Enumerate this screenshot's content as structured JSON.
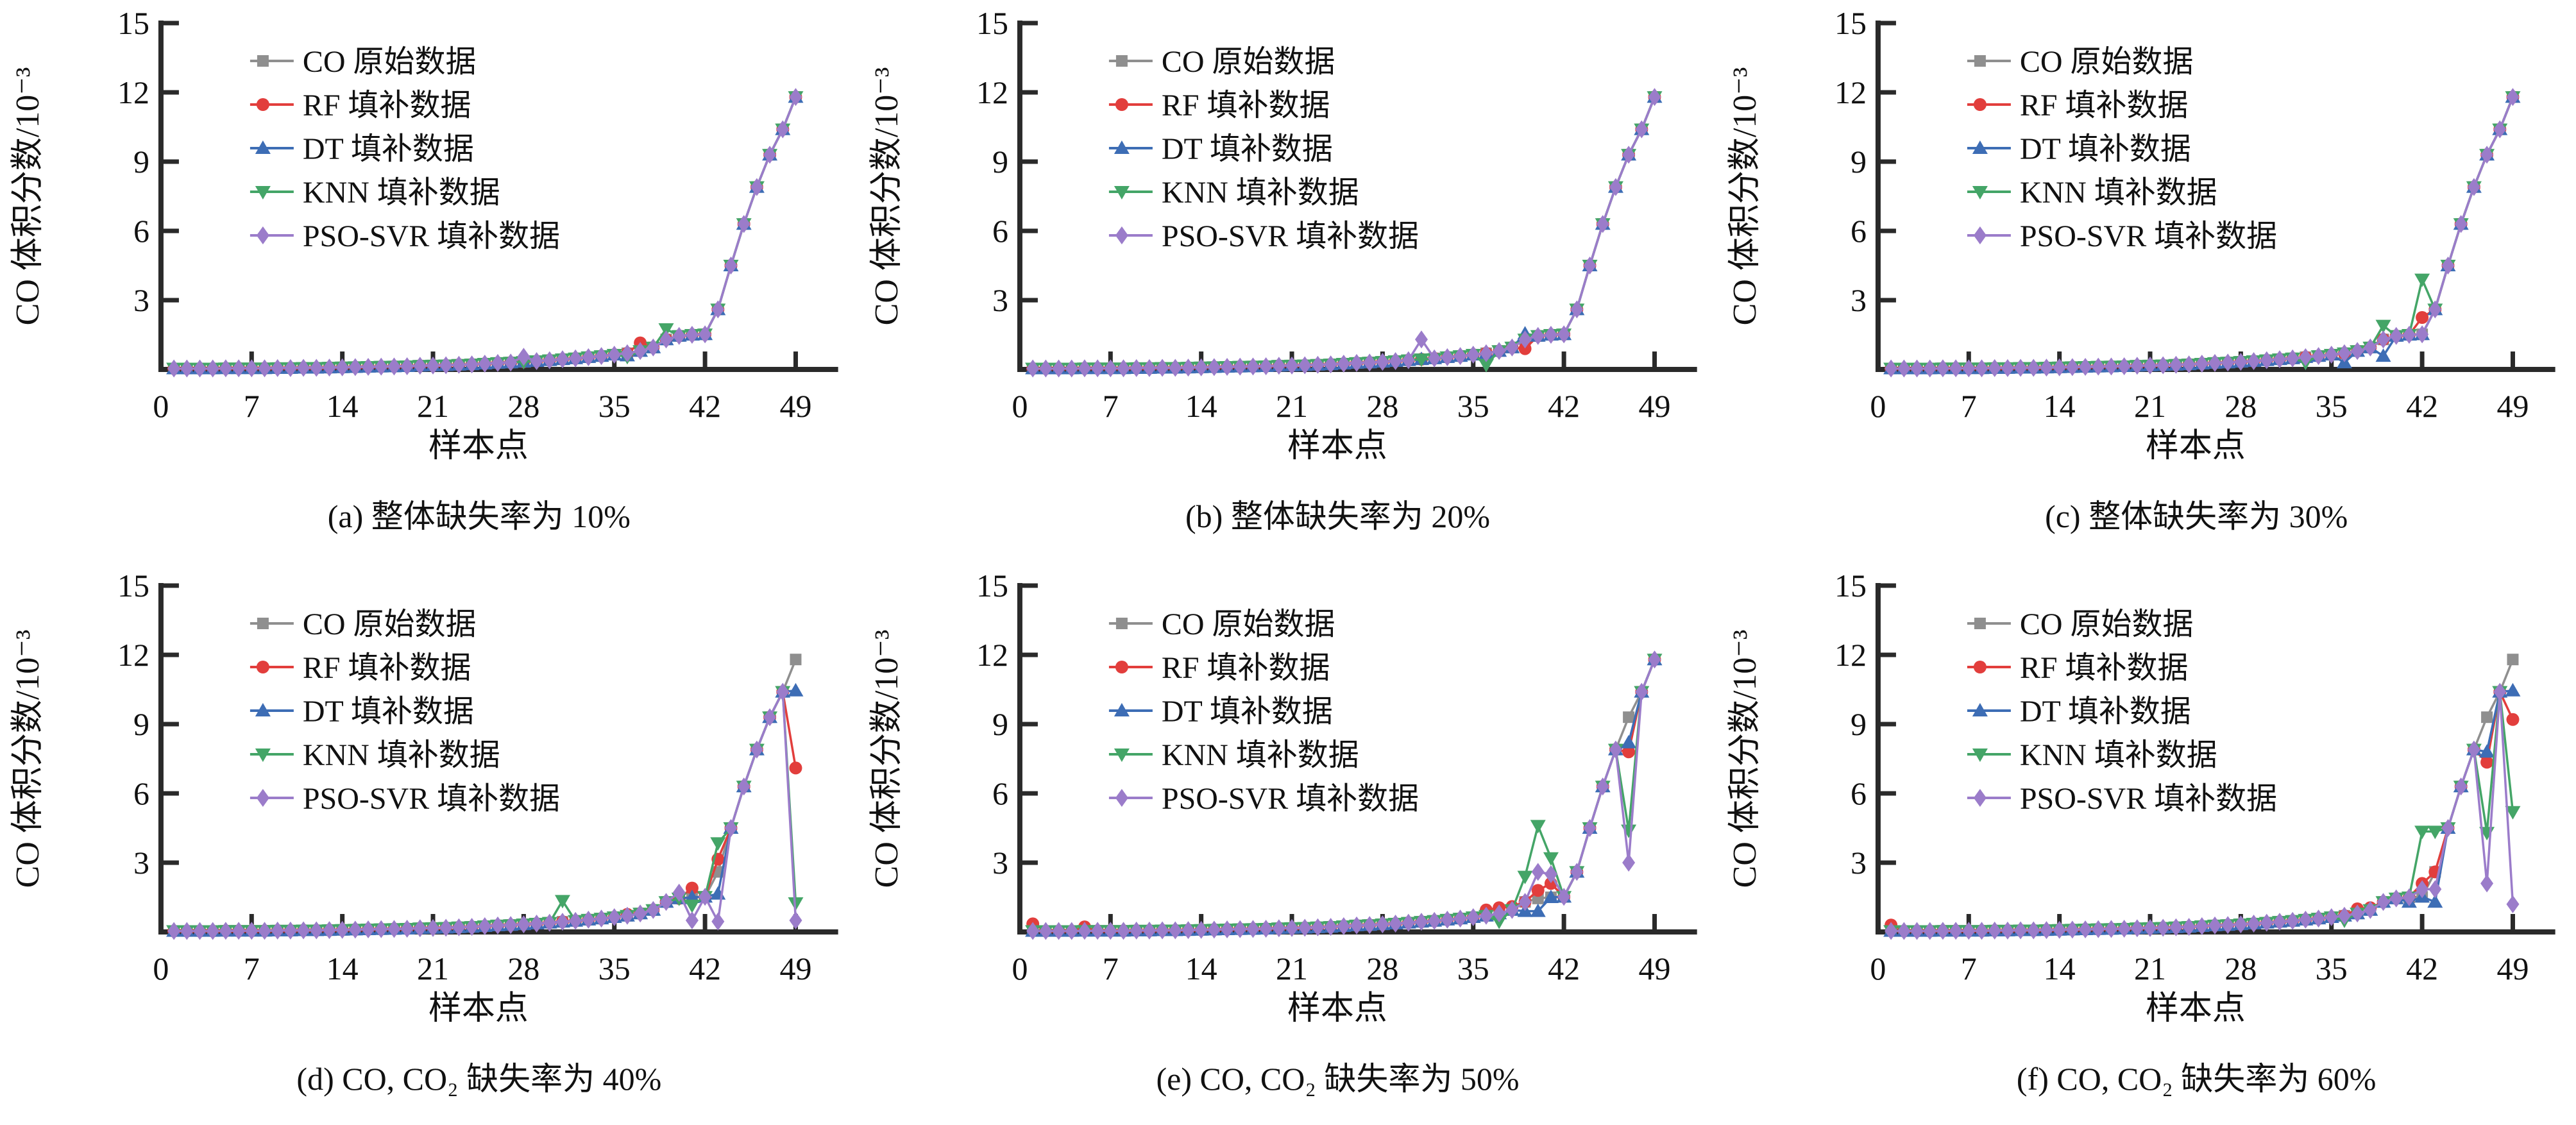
{
  "figure": {
    "background": "#ffffff",
    "text_color": "#111111",
    "axis_color": "#2a2a2a"
  },
  "legend": [
    {
      "key": "CO",
      "label": "CO 原始数据",
      "color": "#8f8f8f",
      "marker": "square"
    },
    {
      "key": "RF",
      "label": "RF 填补数据",
      "color": "#e23e3c",
      "marker": "circle"
    },
    {
      "key": "DT",
      "label": "DT 填补数据",
      "color": "#3d6db5",
      "marker": "triangle-up"
    },
    {
      "key": "KNN",
      "label": "KNN 填补数据",
      "color": "#44a567",
      "marker": "triangle-down"
    },
    {
      "key": "PSO-SVR",
      "label": "PSO-SVR 填补数据",
      "color": "#9b7cca",
      "marker": "diamond"
    }
  ],
  "chart_data": {
    "type": "line",
    "xlabel": "样本点",
    "ylabel": "CO 体积分数/10⁻³",
    "xlim": [
      0,
      52
    ],
    "ylim": [
      0,
      15
    ],
    "x_ticks": [
      0,
      7,
      14,
      21,
      28,
      35,
      42,
      49
    ],
    "y_ticks": [
      3,
      6,
      9,
      12,
      15
    ],
    "grid": false,
    "legend_position": "upper-left-inside",
    "x": [
      1,
      2,
      3,
      4,
      5,
      6,
      7,
      8,
      9,
      10,
      11,
      12,
      13,
      14,
      15,
      16,
      17,
      18,
      19,
      20,
      21,
      22,
      23,
      24,
      25,
      26,
      27,
      28,
      29,
      30,
      31,
      32,
      33,
      34,
      35,
      36,
      37,
      38,
      39,
      40,
      41,
      42,
      43,
      44,
      45,
      46,
      47,
      48,
      49
    ],
    "series_keys": [
      "CO",
      "RF",
      "DT",
      "KNN",
      "PSO-SVR"
    ],
    "values_note": "每个子图中各序列的数值等于 base_values（CO 原始数据），仅 overrides 中列出的样本点（键=样本点序号）被该填补方法的值替换，单位 10^-3",
    "base_values": [
      0.04,
      0.04,
      0.04,
      0.04,
      0.05,
      0.05,
      0.05,
      0.05,
      0.06,
      0.06,
      0.07,
      0.07,
      0.08,
      0.09,
      0.1,
      0.11,
      0.12,
      0.13,
      0.14,
      0.16,
      0.17,
      0.18,
      0.2,
      0.22,
      0.25,
      0.28,
      0.3,
      0.33,
      0.36,
      0.4,
      0.44,
      0.48,
      0.53,
      0.58,
      0.64,
      0.7,
      0.8,
      0.95,
      1.3,
      1.45,
      1.5,
      1.52,
      2.6,
      4.5,
      6.3,
      7.9,
      9.3,
      10.4,
      11.8
    ],
    "subplots": [
      {
        "id": "a",
        "caption": "(a) 整体缺失率为 10%",
        "missing_rate": "10%",
        "overrides": {
          "CO": {},
          "RF": {
            "37": 1.15
          },
          "DT": {
            "36": 0.6
          },
          "KNN": {
            "36": 0.55,
            "39": 1.75
          },
          "PSO-SVR": {
            "28": 0.55
          }
        }
      },
      {
        "id": "b",
        "caption": "(b) 整体缺失率为 20%",
        "missing_rate": "20%",
        "overrides": {
          "CO": {},
          "RF": {
            "39": 0.9
          },
          "DT": {
            "39": 1.55
          },
          "KNN": {
            "32": 0.45,
            "36": 0.2
          },
          "PSO-SVR": {
            "31": 1.3
          }
        }
      },
      {
        "id": "c",
        "caption": "(c) 整体缺失率为 30%",
        "missing_rate": "30%",
        "overrides": {
          "CO": {},
          "RF": {
            "42": 2.25
          },
          "DT": {
            "36": 0.3,
            "39": 0.58
          },
          "KNN": {
            "33": 0.3,
            "39": 1.9,
            "42": 3.9
          },
          "PSO-SVR": {}
        }
      },
      {
        "id": "d",
        "caption": "(d) CO, CO₂ 缺失率为 40%",
        "missing_rate": "40%",
        "overrides": {
          "CO": {},
          "RF": {
            "36": 0.76,
            "41": 1.9,
            "43": 3.15,
            "49": 7.1
          },
          "DT": {
            "43": 1.65,
            "49": 10.45
          },
          "KNN": {
            "31": 1.35,
            "41": 1.15,
            "43": 3.85,
            "49": 1.25
          },
          "PSO-SVR": {
            "40": 1.7,
            "41": 0.5,
            "43": 0.45,
            "49": 0.5
          }
        }
      },
      {
        "id": "e",
        "caption": "(e) CO, CO₂ 缺失率为 50%",
        "missing_rate": "50%",
        "overrides": {
          "CO": {},
          "RF": {
            "1": 0.35,
            "5": 0.22,
            "36": 0.95,
            "37": 1.05,
            "38": 1.1,
            "40": 1.8,
            "41": 2.1,
            "47": 7.8
          },
          "DT": {
            "39": 0.9,
            "40": 0.9,
            "47": 8.2
          },
          "KNN": {
            "37": 0.45,
            "39": 2.4,
            "40": 4.6,
            "41": 3.2,
            "47": 4.4
          },
          "PSO-SVR": {
            "40": 2.6,
            "41": 2.5,
            "47": 3.0
          }
        }
      },
      {
        "id": "f",
        "caption": "(f) CO, CO₂ 缺失率为 60%",
        "missing_rate": "60%",
        "overrides": {
          "CO": {},
          "RF": {
            "1": 0.3,
            "37": 1.0,
            "38": 1.05,
            "42": 2.1,
            "47": 7.35,
            "49": 9.2
          },
          "DT": {
            "41": 1.3,
            "43": 1.3,
            "47": 7.8,
            "49": 10.45
          },
          "KNN": {
            "36": 0.5,
            "42": 4.35,
            "43": 4.35,
            "47": 4.3,
            "49": 5.2
          },
          "PSO-SVR": {
            "42": 1.85,
            "43": 1.85,
            "47": 2.1,
            "49": 1.2
          }
        }
      }
    ]
  }
}
